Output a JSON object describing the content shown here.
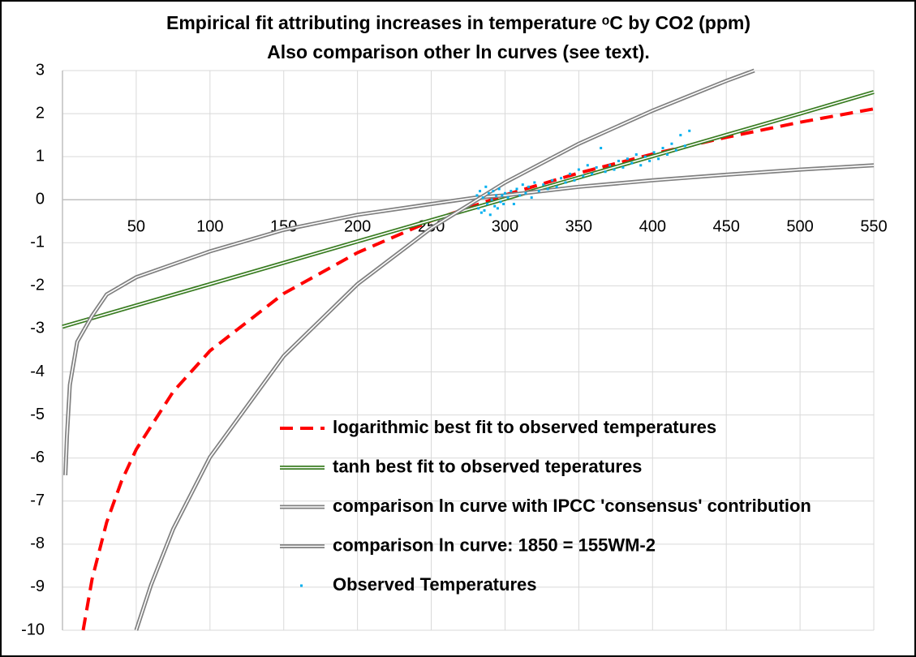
{
  "chart_data": {
    "type": "line",
    "title": [
      "Empirical fit attributing increases in temperature ᵒC by CO2 (ppm)",
      "Also comparison other ln curves (see text)."
    ],
    "xlim": [
      0,
      550
    ],
    "xticks": [
      50,
      100,
      150,
      200,
      250,
      300,
      350,
      400,
      450,
      500,
      550
    ],
    "ylim": [
      -10,
      3
    ],
    "yticks": [
      -10,
      -9,
      -8,
      -7,
      -6,
      -5,
      -4,
      -3,
      -2,
      -1,
      0,
      1,
      2,
      3
    ],
    "grid": true,
    "series": [
      {
        "name": "logarithmic best fit to observed temperatures",
        "color": "#ff0000",
        "legend_text_color": "#ff0000",
        "style": "dashed",
        "x": [
          14,
          20,
          30,
          40,
          50,
          75,
          100,
          150,
          200,
          250,
          300,
          350,
          400,
          450,
          500,
          550
        ],
        "values": [
          -10.0,
          -8.82,
          -7.49,
          -6.54,
          -5.8,
          -4.46,
          -3.51,
          -2.18,
          -1.23,
          -0.49,
          0.11,
          0.62,
          1.06,
          1.45,
          1.8,
          2.11
        ]
      },
      {
        "name": "tanh best fit to observed teperatures",
        "color": "#3a7d22",
        "legend_text_color": "#3a7d22",
        "style": "double",
        "x": [
          0,
          100,
          200,
          300,
          400,
          500,
          550
        ],
        "values": [
          -2.95,
          -1.96,
          -0.97,
          0.02,
          1.01,
          2.0,
          2.5
        ]
      },
      {
        "name": "comparison ln curve with IPCC 'consensus' contribution",
        "color": "#808080",
        "legend_text_color": "#000000",
        "style": "double",
        "x": [
          2,
          3,
          5,
          10,
          20,
          30,
          50,
          75,
          100,
          150,
          200,
          250,
          280,
          300,
          350,
          400,
          450,
          500,
          550
        ],
        "values": [
          -6.4,
          -5.5,
          -4.3,
          -3.3,
          -2.7,
          -2.2,
          -1.8,
          -1.5,
          -1.2,
          -0.7,
          -0.35,
          -0.1,
          0.05,
          0.1,
          0.3,
          0.45,
          0.58,
          0.7,
          0.8
        ]
      },
      {
        "name": "comparison ln curve: 1850 = 155WM-2",
        "color": "#808080",
        "legend_text_color": "#000000",
        "style": "double",
        "x": [
          50,
          60,
          75,
          100,
          150,
          200,
          250,
          300,
          350,
          400,
          450,
          469
        ],
        "values": [
          -10.0,
          -8.95,
          -7.65,
          -5.98,
          -3.63,
          -1.96,
          -0.66,
          0.4,
          1.3,
          2.07,
          2.76,
          3.0
        ]
      },
      {
        "name": "Observed Temperatures",
        "color": "#00b0f0",
        "legend_text_color": "#000000",
        "style": "points",
        "x": [
          281,
          282,
          283,
          284,
          285,
          286,
          287,
          288,
          289,
          290,
          291,
          292,
          293,
          294,
          295,
          296,
          297,
          298,
          299,
          300,
          302,
          304,
          306,
          308,
          310,
          312,
          314,
          316,
          318,
          320,
          323,
          326,
          329,
          332,
          335,
          338,
          341,
          344,
          347,
          350,
          353,
          356,
          359,
          362,
          365,
          368,
          371,
          374,
          377,
          380,
          383,
          386,
          389,
          392,
          395,
          398,
          401,
          404,
          407,
          410,
          413,
          416,
          419,
          422,
          425
        ],
        "values": [
          0.1,
          -0.2,
          0.2,
          -0.3,
          0.05,
          -0.25,
          0.3,
          -0.1,
          0.15,
          -0.35,
          0.0,
          0.2,
          -0.15,
          0.1,
          -0.2,
          0.25,
          -0.05,
          0.1,
          -0.1,
          0.15,
          0.05,
          0.2,
          -0.1,
          0.25,
          0.1,
          0.35,
          0.15,
          0.3,
          0.05,
          0.4,
          0.2,
          0.35,
          0.25,
          0.45,
          0.3,
          0.5,
          0.4,
          0.6,
          0.45,
          0.7,
          0.55,
          0.8,
          0.6,
          0.75,
          1.2,
          0.65,
          0.8,
          0.7,
          0.9,
          0.75,
          0.95,
          0.85,
          1.05,
          0.8,
          1.0,
          0.9,
          1.1,
          0.95,
          1.2,
          1.05,
          1.3,
          1.15,
          1.5,
          1.25,
          1.6
        ]
      }
    ]
  }
}
